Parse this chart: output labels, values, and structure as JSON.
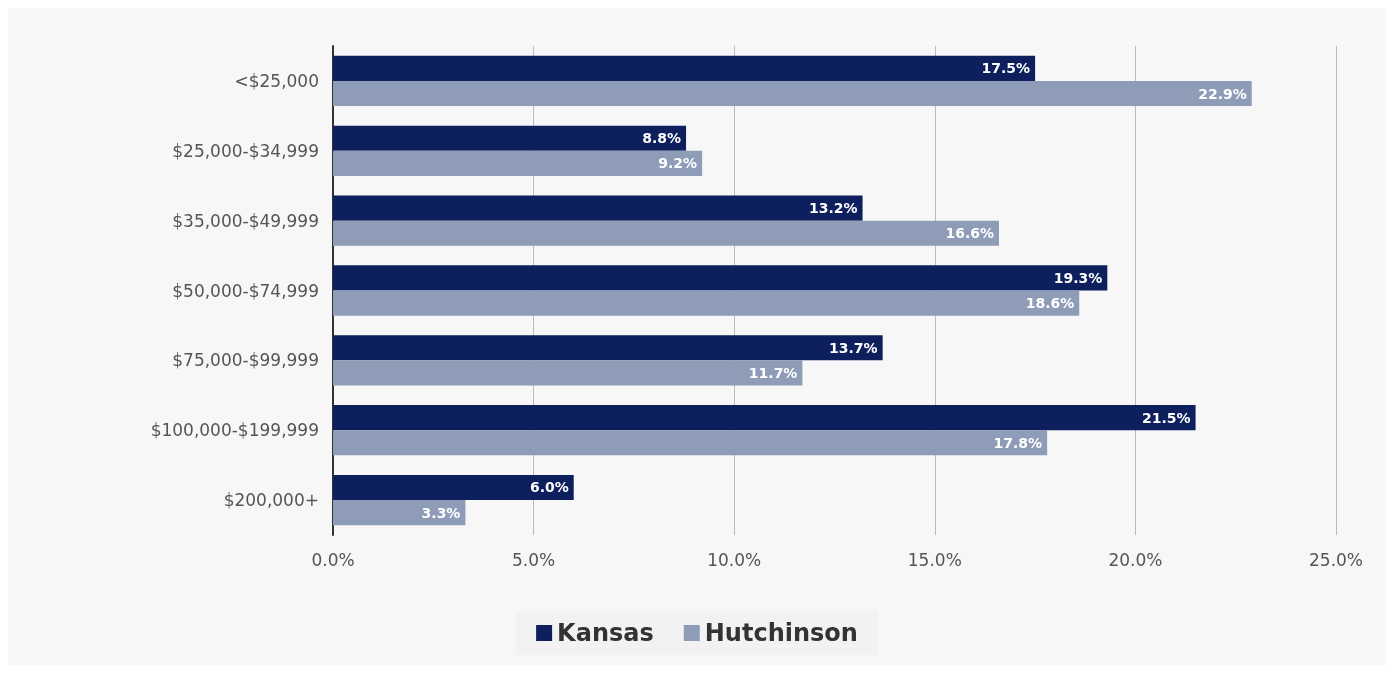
{
  "chart_data": {
    "type": "bar",
    "orientation": "horizontal",
    "categories": [
      "<$25,000",
      "$25,000-$34,999",
      "$35,000-$49,999",
      "$50,000-$74,999",
      "$75,000-$99,999",
      "$100,000-$199,999",
      "$200,000+"
    ],
    "series": [
      {
        "name": "Kansas",
        "color": "#0d1f5c",
        "values": [
          17.5,
          8.8,
          13.2,
          19.3,
          13.7,
          21.5,
          6.0
        ],
        "value_labels": [
          "17.5%",
          "8.8%",
          "13.2%",
          "19.3%",
          "13.7%",
          "21.5%",
          "6.0%"
        ]
      },
      {
        "name": "Hutchinson",
        "color": "#8f9cb8",
        "values": [
          22.9,
          9.2,
          16.6,
          18.6,
          11.7,
          17.8,
          3.3
        ],
        "value_labels": [
          "22.9%",
          "9.2%",
          "16.6%",
          "18.6%",
          "11.7%",
          "17.8%",
          "3.3%"
        ]
      }
    ],
    "xlim": [
      0,
      25
    ],
    "xticks": [
      {
        "value": 0,
        "label": "0.0%"
      },
      {
        "value": 5,
        "label": "5.0%"
      },
      {
        "value": 10,
        "label": "10.0%"
      },
      {
        "value": 15,
        "label": "15.0%"
      },
      {
        "value": 20,
        "label": "20.0%"
      },
      {
        "value": 25,
        "label": "25.0%"
      }
    ],
    "grid": "x",
    "legend": "bottom"
  }
}
